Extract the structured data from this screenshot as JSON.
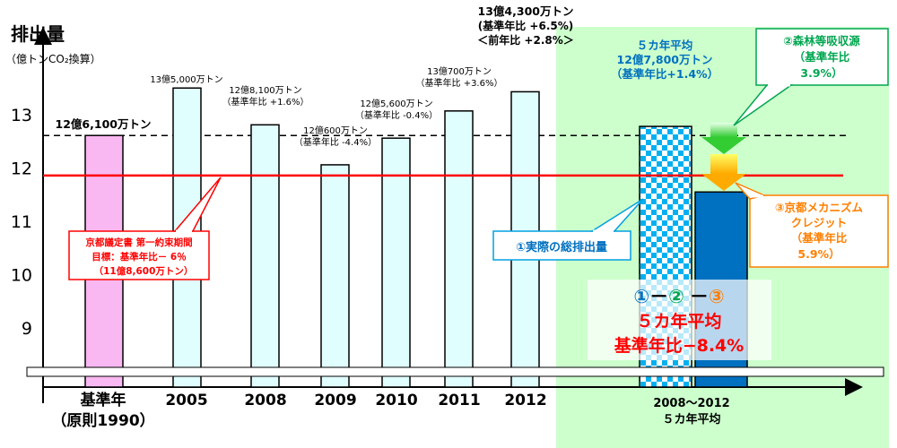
{
  "chart_data": {
    "type": "bar",
    "ylabel": "排出量",
    "ylabel_sub": "（億トンCO₂換算）",
    "ylim": [
      8.3,
      13.9
    ],
    "yticks": [
      9,
      10,
      11,
      12,
      13
    ],
    "grid": false,
    "categories": [
      "基準年\n（原則1990）",
      "2005",
      "2008",
      "2009",
      "2010",
      "2011",
      "2012",
      "2008～2012\n５カ年平均"
    ],
    "category_labels": [
      {
        "line1": "基準年",
        "line2": "（原則1990）"
      },
      {
        "line1": "2005",
        "line2": ""
      },
      {
        "line1": "2008",
        "line2": ""
      },
      {
        "line1": "2009",
        "line2": ""
      },
      {
        "line1": "2010",
        "line2": ""
      },
      {
        "line1": "2011",
        "line2": ""
      },
      {
        "line1": "2012",
        "line2": ""
      },
      {
        "line1": "2008～2012",
        "line2": "５カ年平均"
      }
    ],
    "bars": [
      {
        "category": "基準年",
        "value": 12.61,
        "color": "#f9b8f2",
        "label": [
          "12億6,100万トン"
        ]
      },
      {
        "category": "2005",
        "value": 13.5,
        "color": "#e1feff",
        "label": [
          "13億5,000万トン"
        ]
      },
      {
        "category": "2008",
        "value": 12.81,
        "color": "#e1feff",
        "label": [
          "12億8,100万トン",
          "（基準年比 +1.6%）"
        ]
      },
      {
        "category": "2009",
        "value": 12.06,
        "color": "#e1feff",
        "label": [
          "12億600万トン",
          "（基準年比 -4.4%）"
        ]
      },
      {
        "category": "2010",
        "value": 12.56,
        "color": "#e1feff",
        "label": [
          "12億5,600万トン",
          "（基準年比 -0.4%）"
        ]
      },
      {
        "category": "2011",
        "value": 13.07,
        "color": "#e1feff",
        "label": [
          "13億700万トン",
          "（基準年比 +3.6%）"
        ]
      },
      {
        "category": "2012",
        "value": 13.43,
        "color": "#e1feff",
        "label": [
          "13億4,300万トン",
          "(基準年比 +6.5%)",
          "＜前年比 +2.8%＞"
        ]
      },
      {
        "category": "5カ年平均（実際の総排出量）",
        "value": 12.78,
        "color": "#00b0f0",
        "pattern": "checker",
        "label": [
          "５カ年平均",
          "12億7,800万トン",
          "（基準年比+1.4%）"
        ]
      },
      {
        "category": "5カ年平均（①－②－③）",
        "value": 11.55,
        "color": "#0070c0",
        "label": []
      }
    ],
    "reference_lines": [
      {
        "name": "base-year-level",
        "value": 12.61,
        "style": "dashed",
        "color": "#000000"
      },
      {
        "name": "kyoto-target",
        "value": 11.86,
        "style": "solid",
        "color": "#ff0000"
      }
    ],
    "highlight_region": {
      "from_category": "2012",
      "to_category": "2008～2012\n５カ年平均",
      "color": "#ccffcc"
    },
    "callouts": {
      "kyoto_target": [
        "京都議定書 第一約束期間",
        "目標：基準年比－ 6％",
        "（11億8,600万トン）"
      ],
      "actual_emissions": "①実際の総排出量",
      "forest_sink": [
        "②森林等吸収源",
        "（基準年比",
        "3.9%）"
      ],
      "kyoto_mechanism": [
        "③京都メカニズム",
        "クレジット",
        "（基準年比",
        "5.9%）"
      ]
    },
    "result_box": {
      "formula_1": "①",
      "formula_2": "②",
      "formula_3": "③",
      "formula_dash": "－",
      "line2": "５カ年平均",
      "line3": "基準年比−8.4%"
    },
    "colors": {
      "base_bar": "#f9b8f2",
      "year_bar": "#e1feff",
      "avg_actual": "#00b0f0",
      "avg_net": "#0070c0",
      "target_line": "#ff0000",
      "highlight": "#ccffcc",
      "forest": "#00a650",
      "kyoto_mech": "#ff7f00",
      "actual": "#0070c0"
    }
  }
}
